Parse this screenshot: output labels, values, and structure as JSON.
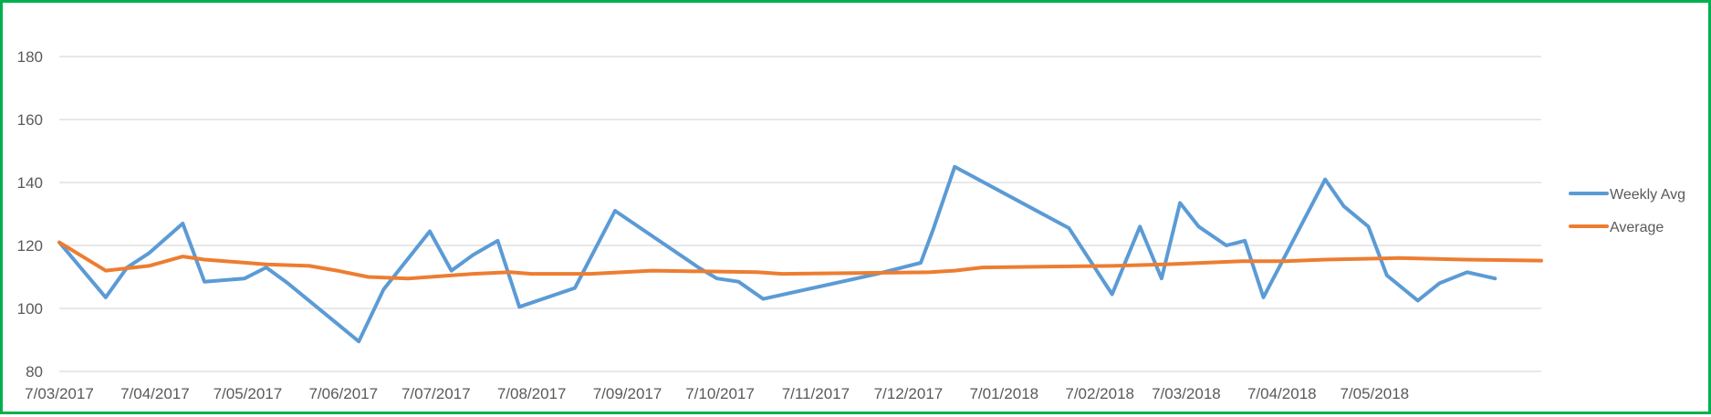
{
  "chart_data": {
    "type": "line",
    "title": "",
    "xlabel": "",
    "ylabel": "",
    "ylim": [
      80,
      180
    ],
    "yticks": [
      80,
      100,
      120,
      140,
      160,
      180
    ],
    "grid": "horizontal",
    "legend_position": "right",
    "x_tick_labels": [
      "7/03/2017",
      "7/04/2017",
      "7/05/2017",
      "7/06/2017",
      "7/07/2017",
      "7/08/2017",
      "7/09/2017",
      "7/10/2017",
      "7/11/2017",
      "7/12/2017",
      "7/01/2018",
      "7/02/2018",
      "7/03/2018",
      "7/04/2018",
      "7/05/2018"
    ],
    "series": [
      {
        "name": "Weekly Avg",
        "color": "#5b9bd5",
        "points": [
          [
            "2017-03-07",
            121
          ],
          [
            "2017-03-22",
            103.5
          ],
          [
            "2017-03-29",
            113
          ],
          [
            "2017-04-05",
            117.5
          ],
          [
            "2017-04-16",
            127
          ],
          [
            "2017-04-23",
            108.5
          ],
          [
            "2017-05-06",
            109.5
          ],
          [
            "2017-05-13",
            113
          ],
          [
            "2017-05-20",
            108
          ],
          [
            "2017-06-12",
            89.5
          ],
          [
            "2017-06-20",
            106
          ],
          [
            "2017-07-05",
            124.5
          ],
          [
            "2017-07-12",
            112
          ],
          [
            "2017-07-19",
            117
          ],
          [
            "2017-07-27",
            121.5
          ],
          [
            "2017-08-03",
            100.5
          ],
          [
            "2017-08-21",
            106.5
          ],
          [
            "2017-09-03",
            131
          ],
          [
            "2017-09-30",
            113
          ],
          [
            "2017-10-06",
            109.5
          ],
          [
            "2017-10-13",
            108.5
          ],
          [
            "2017-10-21",
            103
          ],
          [
            "2017-11-27",
            111
          ],
          [
            "2017-12-11",
            114.5
          ],
          [
            "2017-12-15",
            125
          ],
          [
            "2017-12-22",
            145
          ],
          [
            "2018-01-28",
            125.5
          ],
          [
            "2018-02-11",
            104.5
          ],
          [
            "2018-02-20",
            126
          ],
          [
            "2018-02-27",
            109.5
          ],
          [
            "2018-03-05",
            133.5
          ],
          [
            "2018-03-11",
            126
          ],
          [
            "2018-03-20",
            120
          ],
          [
            "2018-03-26",
            121.5
          ],
          [
            "2018-04-01",
            103.5
          ],
          [
            "2018-04-21",
            141
          ],
          [
            "2018-04-27",
            132.5
          ],
          [
            "2018-05-05",
            126
          ],
          [
            "2018-05-11",
            110.5
          ],
          [
            "2018-05-21",
            102.5
          ],
          [
            "2018-05-28",
            108
          ],
          [
            "2018-06-06",
            111.5
          ],
          [
            "2018-06-15",
            109.5
          ]
        ]
      },
      {
        "name": "Average",
        "color": "#ed7d31",
        "points": [
          [
            "2017-03-07",
            121
          ],
          [
            "2017-03-22",
            112
          ],
          [
            "2017-04-05",
            113.5
          ],
          [
            "2017-04-16",
            116.5
          ],
          [
            "2017-04-23",
            115.5
          ],
          [
            "2017-05-13",
            114
          ],
          [
            "2017-05-27",
            113.5
          ],
          [
            "2017-06-05",
            112
          ],
          [
            "2017-06-15",
            110
          ],
          [
            "2017-06-28",
            109.5
          ],
          [
            "2017-07-19",
            111
          ],
          [
            "2017-07-31",
            111.5
          ],
          [
            "2017-08-07",
            111
          ],
          [
            "2017-08-26",
            111
          ],
          [
            "2017-09-15",
            112
          ],
          [
            "2017-10-19",
            111.5
          ],
          [
            "2017-10-27",
            111
          ],
          [
            "2017-12-14",
            111.5
          ],
          [
            "2017-12-22",
            112
          ],
          [
            "2017-12-31",
            113
          ],
          [
            "2018-02-11",
            113.5
          ],
          [
            "2018-02-28",
            114
          ],
          [
            "2018-03-25",
            115
          ],
          [
            "2018-04-08",
            115
          ],
          [
            "2018-04-21",
            115.5
          ],
          [
            "2018-05-15",
            116
          ],
          [
            "2018-06-05",
            115.5
          ],
          [
            "2018-06-30",
            115.2
          ]
        ]
      }
    ]
  }
}
